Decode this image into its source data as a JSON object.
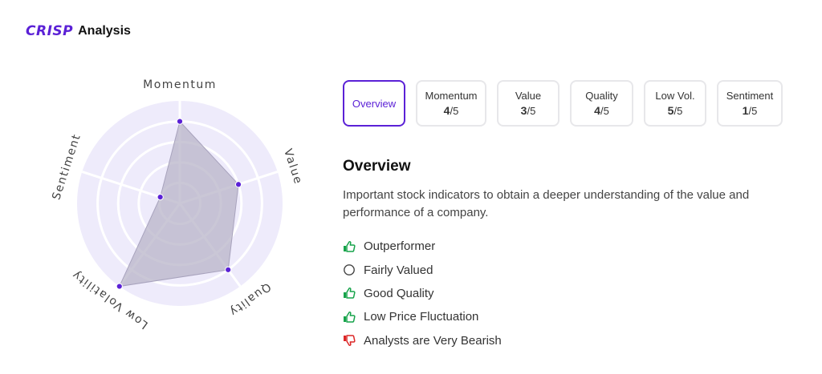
{
  "header": {
    "logo_text": "CRISP",
    "title": "Analysis"
  },
  "radar": {
    "axes": [
      "Momentum",
      "Value",
      "Quality",
      "Low Volatility",
      "Sentiment"
    ],
    "max": 5,
    "fill_color": "#b8b4c8",
    "point_color": "#5b21d6",
    "bg_color": "#eeebfb"
  },
  "tabs": [
    {
      "label": "Overview",
      "active": true
    },
    {
      "label": "Momentum",
      "score": "4",
      "denominator": "/5"
    },
    {
      "label": "Value",
      "score": "3",
      "denominator": "/5"
    },
    {
      "label": "Quality",
      "score": "4",
      "denominator": "/5"
    },
    {
      "label": "Low Vol.",
      "score": "5",
      "denominator": "/5"
    },
    {
      "label": "Sentiment",
      "score": "1",
      "denominator": "/5"
    }
  ],
  "overview": {
    "title": "Overview",
    "description": "Important stock indicators to obtain a deeper understanding of the value and performance of a company.",
    "items": [
      {
        "text": "Outperformer",
        "icon": "thumbs-up-icon",
        "color": "#16a34a"
      },
      {
        "text": "Fairly Valued",
        "icon": "circle-icon",
        "color": "#444444"
      },
      {
        "text": "Good Quality",
        "icon": "thumbs-up-icon",
        "color": "#16a34a"
      },
      {
        "text": "Low Price Fluctuation",
        "icon": "thumbs-up-icon",
        "color": "#16a34a"
      },
      {
        "text": "Analysts are Very Bearish",
        "icon": "thumbs-down-icon",
        "color": "#dc2626"
      }
    ]
  }
}
